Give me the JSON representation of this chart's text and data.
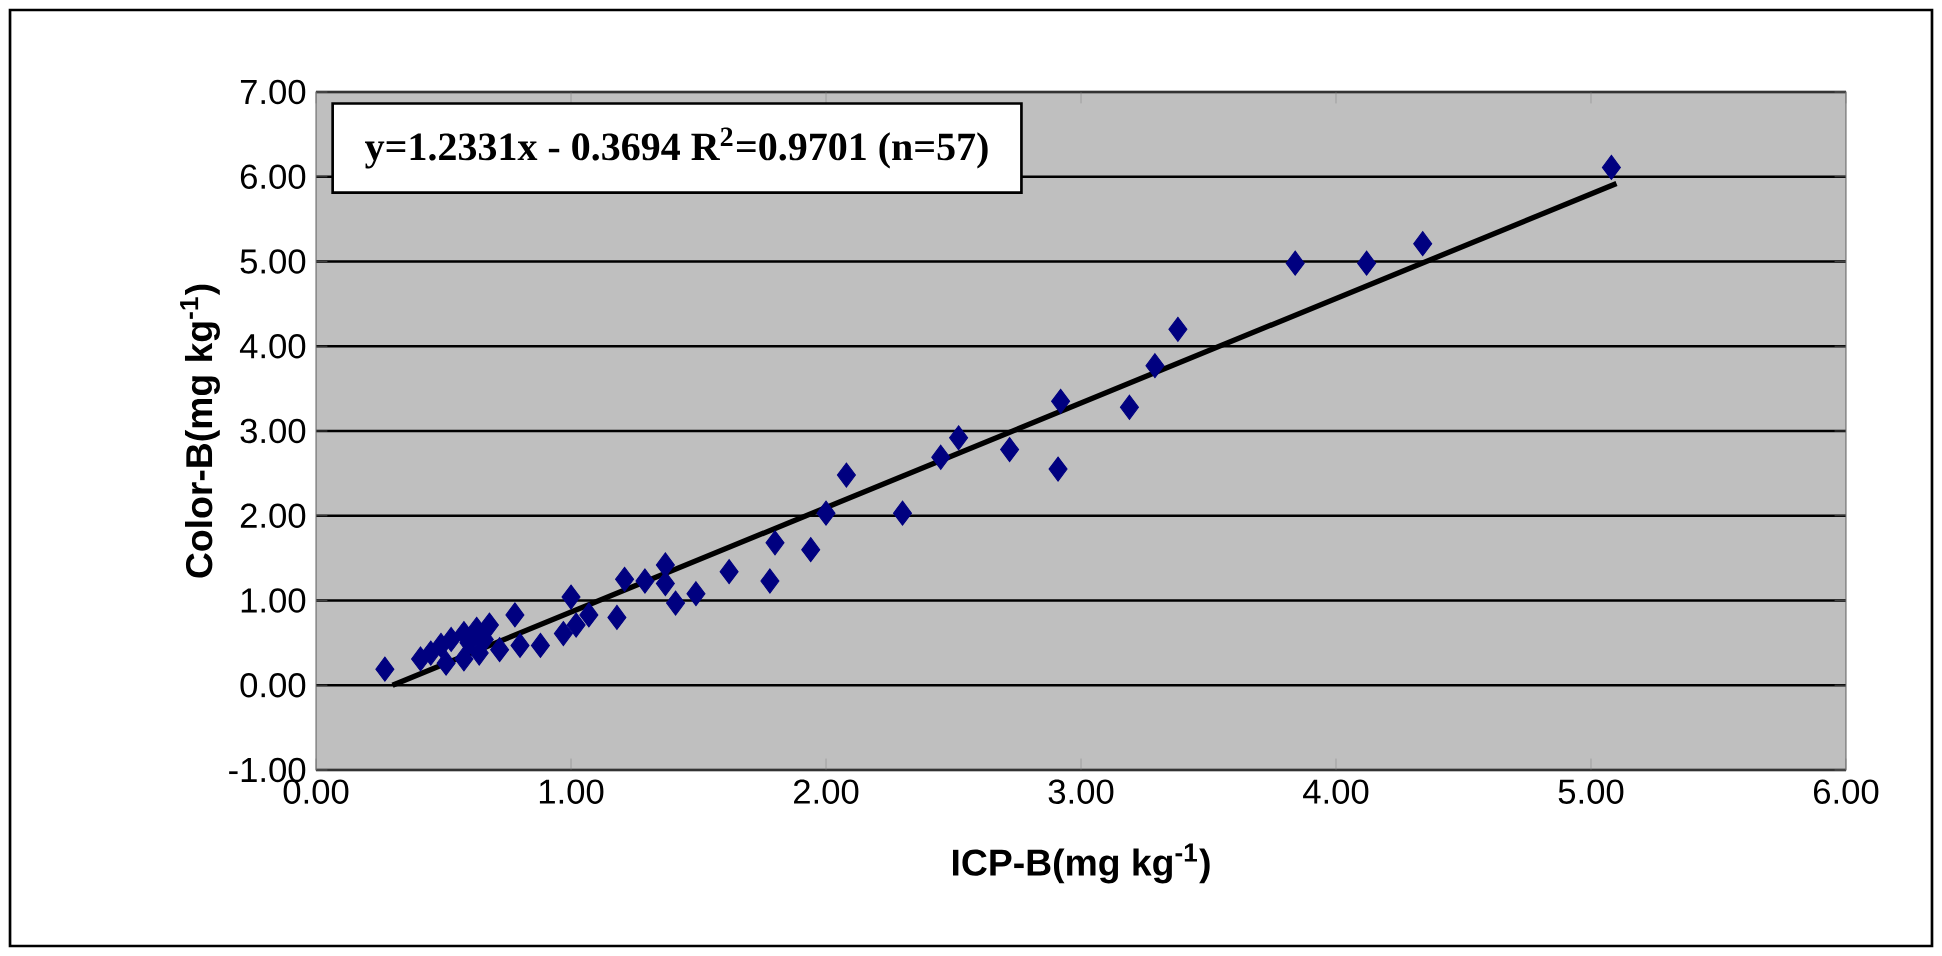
{
  "chart_data": {
    "type": "scatter",
    "xlabel": "ICP-B(mg kg$^{-1}$)",
    "ylabel": "Color-B(mg kg$^{-1}$)",
    "annotations": [
      "y=1.2331x - 0.3694 R$^{2}$=0.9701 (n=57)"
    ],
    "xlim": [
      0,
      6
    ],
    "ylim": [
      -1,
      7
    ],
    "xticks": [
      {
        "value": 0,
        "label": "0.00"
      },
      {
        "value": 1,
        "label": "1.00"
      },
      {
        "value": 2,
        "label": "2.00"
      },
      {
        "value": 3,
        "label": "3.00"
      },
      {
        "value": 4,
        "label": "4.00"
      },
      {
        "value": 5,
        "label": "5.00"
      },
      {
        "value": 6,
        "label": "6.00"
      }
    ],
    "yticks": [
      {
        "value": -1,
        "label": "-1.00"
      },
      {
        "value": 0,
        "label": "0.00"
      },
      {
        "value": 1,
        "label": "1.00"
      },
      {
        "value": 2,
        "label": "2.00"
      },
      {
        "value": 3,
        "label": "3.00"
      },
      {
        "value": 4,
        "label": "4.00"
      },
      {
        "value": 5,
        "label": "5.00"
      },
      {
        "value": 6,
        "label": "6.00"
      },
      {
        "value": 7,
        "label": "7.00"
      }
    ],
    "grid": "y",
    "marker": "diamond",
    "series": [
      {
        "color": "#000080",
        "x": [
          0.27,
          0.78,
          1.0,
          1.18,
          1.21,
          1.29,
          1.37,
          1.37,
          1.41,
          1.49,
          1.62,
          1.78,
          1.8,
          1.94,
          1.07,
          1.02,
          0.97,
          0.88,
          0.8,
          0.74,
          0.68,
          0.63,
          0.58,
          0.53,
          0.49,
          0.45,
          0.41,
          0.51,
          0.58,
          0.64,
          0.72,
          0.6,
          0.66,
          2.0,
          2.08,
          2.3,
          2.45,
          2.52,
          2.72,
          2.91,
          2.92,
          3.19,
          3.29,
          3.38,
          3.84,
          4.12,
          4.34,
          5.08
        ],
        "values": [
          0.19,
          0.83,
          1.04,
          0.8,
          1.25,
          1.23,
          1.42,
          1.2,
          0.97,
          1.08,
          1.34,
          1.23,
          1.68,
          1.6,
          0.83,
          0.71,
          0.61,
          0.47,
          0.47,
          null,
          0.71,
          0.66,
          0.61,
          0.54,
          0.47,
          0.38,
          0.31,
          0.26,
          0.31,
          0.38,
          0.42,
          0.5,
          0.54,
          2.03,
          2.48,
          2.03,
          2.69,
          2.92,
          2.78,
          2.55,
          3.35,
          3.28,
          3.77,
          4.2,
          4.98,
          4.98,
          5.21,
          6.11
        ]
      },
      {
        "type": "line",
        "color": "#000000",
        "marker": "none",
        "x": [
          0.3,
          5.1
        ],
        "values": [
          0.0,
          5.92
        ]
      }
    ]
  }
}
